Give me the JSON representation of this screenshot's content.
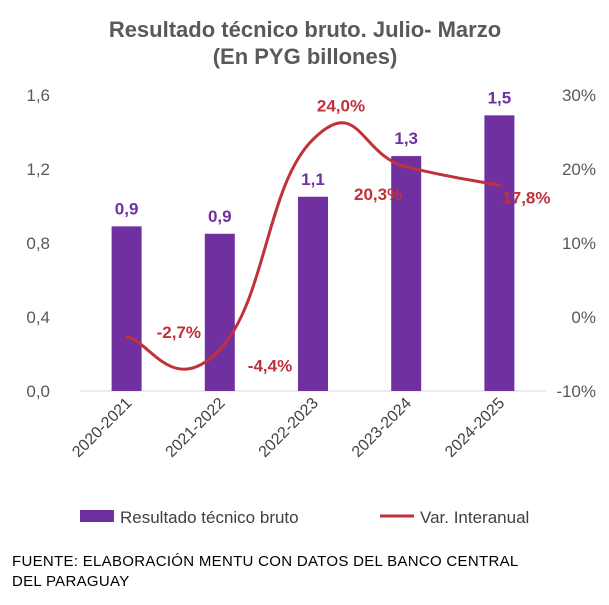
{
  "chart_data": {
    "type": "bar",
    "title": "Resultado técnico bruto. Julio- Marzo",
    "subtitle": "(En PYG billones)",
    "categories": [
      "2020-2021",
      "2021-2022",
      "2022-2023",
      "2023-2024",
      "2024-2025"
    ],
    "series": [
      {
        "name": "Resultado técnico bruto",
        "type": "bar",
        "axis": "left",
        "values": [
          0.89,
          0.85,
          1.05,
          1.27,
          1.49
        ],
        "labels": [
          "0,9",
          "0,9",
          "1,1",
          "1,3",
          "1,5"
        ],
        "color": "#7030A0"
      },
      {
        "name": "Var. Interanual",
        "type": "line",
        "axis": "right",
        "values": [
          -2.7,
          -4.4,
          24.0,
          20.3,
          17.8
        ],
        "labels": [
          "-2,7%",
          "-4,4%",
          "24,0%",
          "20,3%",
          "17,8%"
        ],
        "color": "#C0313A"
      }
    ],
    "y_left": {
      "ylim": [
        0,
        1.6
      ],
      "ticks": [
        "0,0",
        "0,4",
        "0,8",
        "1,2",
        "1,6"
      ]
    },
    "y_right": {
      "ylim": [
        -10,
        30
      ],
      "ticks": [
        "-10%",
        "0%",
        "10%",
        "20%",
        "30%"
      ]
    },
    "legend": {
      "position": "bottom"
    },
    "grid": false
  },
  "footer": {
    "line1": "FUENTE: ELABORACIÓN MENTU CON DATOS DEL BANCO CENTRAL",
    "line2": "DEL PARAGUAY"
  }
}
